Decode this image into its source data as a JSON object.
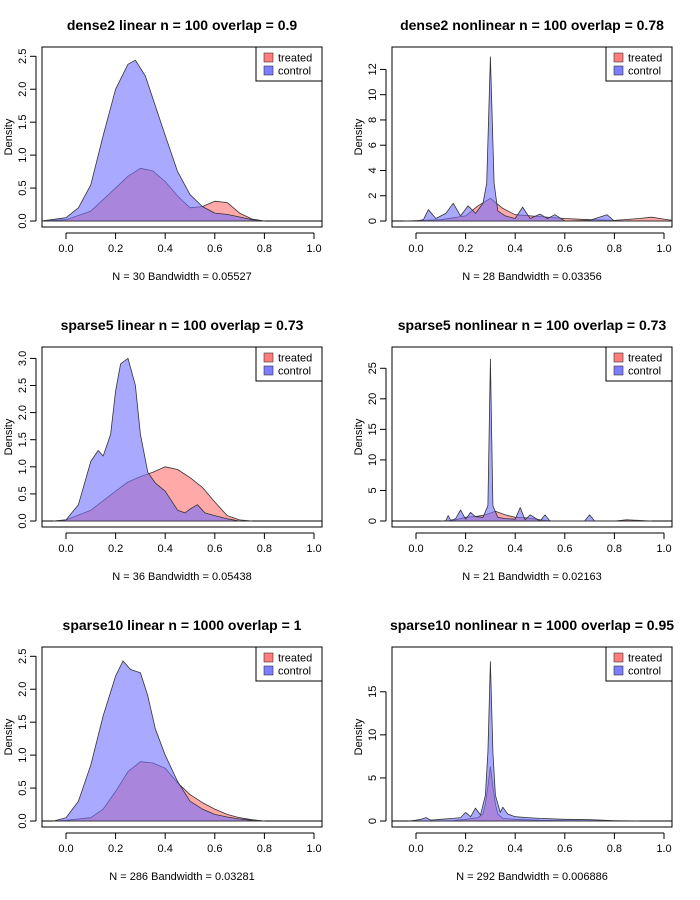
{
  "colors": {
    "treated": "#ff6f6f",
    "control": "#6f6fff",
    "overlap": "#7a2fc0",
    "axis": "#000000"
  },
  "legend": {
    "position": "top-right",
    "labels": [
      "treated",
      "control"
    ]
  },
  "chart_data": [
    {
      "type": "area",
      "title": "dense2 linear n = 100 overlap = 0.9",
      "xlabel": "N = 30   Bandwidth = 0.05527",
      "ylabel": "Density",
      "xlim": [
        0,
        1
      ],
      "ylim": [
        0,
        2.55
      ],
      "xticks": [
        "0.0",
        "0.2",
        "0.4",
        "0.6",
        "0.8",
        "1.0"
      ],
      "yticks": [
        "0.0",
        "0.5",
        "1.0",
        "1.5",
        "2.0",
        "2.5"
      ],
      "series": [
        {
          "name": "treated",
          "x": [
            -0.1,
            0.0,
            0.1,
            0.2,
            0.25,
            0.3,
            0.35,
            0.4,
            0.45,
            0.5,
            0.55,
            0.6,
            0.65,
            0.7,
            0.75,
            0.8
          ],
          "y": [
            0.0,
            0.02,
            0.15,
            0.5,
            0.68,
            0.8,
            0.76,
            0.6,
            0.38,
            0.2,
            0.22,
            0.3,
            0.28,
            0.12,
            0.03,
            0.0
          ]
        },
        {
          "name": "control",
          "x": [
            -0.1,
            0.0,
            0.05,
            0.1,
            0.15,
            0.2,
            0.25,
            0.28,
            0.32,
            0.36,
            0.4,
            0.45,
            0.5,
            0.55,
            0.6,
            0.65,
            0.7,
            0.75,
            0.8
          ],
          "y": [
            0.0,
            0.05,
            0.2,
            0.55,
            1.3,
            2.0,
            2.38,
            2.44,
            2.2,
            1.75,
            1.3,
            0.75,
            0.4,
            0.22,
            0.12,
            0.1,
            0.06,
            0.02,
            0.0
          ]
        }
      ]
    },
    {
      "type": "area",
      "title": "dense2 nonlinear n = 100 overlap = 0.78",
      "xlabel": "N = 28   Bandwidth = 0.03356",
      "ylabel": "Density",
      "xlim": [
        0,
        1
      ],
      "ylim": [
        0,
        13.3
      ],
      "xticks": [
        "0.0",
        "0.2",
        "0.4",
        "0.6",
        "0.8",
        "1.0"
      ],
      "yticks": [
        "0",
        "2",
        "4",
        "6",
        "8",
        "10",
        "12"
      ],
      "series": [
        {
          "name": "treated",
          "x": [
            -0.05,
            0.0,
            0.1,
            0.2,
            0.25,
            0.3,
            0.35,
            0.4,
            0.5,
            0.6,
            0.7,
            0.8,
            0.9,
            0.95,
            1.0,
            1.05
          ],
          "y": [
            0.0,
            0.02,
            0.1,
            0.4,
            1.2,
            1.8,
            1.0,
            0.5,
            0.35,
            0.2,
            0.1,
            0.05,
            0.2,
            0.3,
            0.15,
            0.0
          ]
        },
        {
          "name": "control",
          "x": [
            0.0,
            0.03,
            0.05,
            0.08,
            0.12,
            0.15,
            0.18,
            0.21,
            0.24,
            0.27,
            0.285,
            0.3,
            0.315,
            0.33,
            0.36,
            0.4,
            0.43,
            0.46,
            0.5,
            0.53,
            0.56,
            0.6,
            0.7,
            0.77,
            0.8,
            0.9,
            1.0
          ],
          "y": [
            0.0,
            0.1,
            0.9,
            0.2,
            0.6,
            1.4,
            0.4,
            1.2,
            0.6,
            1.4,
            3.0,
            13.0,
            3.0,
            0.8,
            0.4,
            0.2,
            1.1,
            0.2,
            0.55,
            0.2,
            0.5,
            0.0,
            0.05,
            0.5,
            0.0,
            0.0,
            0.0
          ]
        }
      ]
    },
    {
      "type": "area",
      "title": "sparse5 linear n = 100 overlap = 0.73",
      "xlabel": "N = 36   Bandwidth = 0.05438",
      "ylabel": "Density",
      "xlim": [
        0,
        1
      ],
      "ylim": [
        0,
        3.1
      ],
      "xticks": [
        "0.0",
        "0.2",
        "0.4",
        "0.6",
        "0.8",
        "1.0"
      ],
      "yticks": [
        "0.0",
        "0.5",
        "1.0",
        "1.5",
        "2.0",
        "2.5",
        "3.0"
      ],
      "series": [
        {
          "name": "treated",
          "x": [
            -0.05,
            0.0,
            0.1,
            0.2,
            0.25,
            0.3,
            0.35,
            0.4,
            0.45,
            0.5,
            0.55,
            0.6,
            0.65,
            0.7,
            0.75
          ],
          "y": [
            0.0,
            0.02,
            0.2,
            0.55,
            0.72,
            0.82,
            0.9,
            1.0,
            0.95,
            0.8,
            0.62,
            0.35,
            0.1,
            0.02,
            0.0
          ]
        },
        {
          "name": "control",
          "x": [
            -0.05,
            0.0,
            0.05,
            0.1,
            0.13,
            0.15,
            0.18,
            0.2,
            0.22,
            0.25,
            0.28,
            0.3,
            0.33,
            0.36,
            0.4,
            0.45,
            0.48,
            0.5,
            0.53,
            0.56,
            0.6,
            0.65,
            0.7
          ],
          "y": [
            0.0,
            0.02,
            0.3,
            1.1,
            1.3,
            1.2,
            1.6,
            2.4,
            2.9,
            3.0,
            2.5,
            1.6,
            0.9,
            0.7,
            0.55,
            0.2,
            0.15,
            0.22,
            0.3,
            0.15,
            0.1,
            0.04,
            0.0
          ]
        }
      ]
    },
    {
      "type": "area",
      "title": "sparse5 nonlinear n = 100 overlap = 0.73",
      "xlabel": "N = 21   Bandwidth = 0.02163",
      "ylabel": "Density",
      "xlim": [
        0,
        1
      ],
      "ylim": [
        0,
        27.5
      ],
      "xticks": [
        "0.0",
        "0.2",
        "0.4",
        "0.6",
        "0.8",
        "1.0"
      ],
      "yticks": [
        "0",
        "5",
        "10",
        "15",
        "20",
        "25"
      ],
      "series": [
        {
          "name": "treated",
          "x": [
            0.1,
            0.15,
            0.2,
            0.25,
            0.28,
            0.32,
            0.36,
            0.4,
            0.45,
            0.5,
            0.55,
            0.8,
            0.85,
            0.9,
            0.95
          ],
          "y": [
            0.0,
            0.1,
            0.6,
            0.8,
            1.0,
            1.6,
            1.0,
            0.6,
            0.5,
            0.2,
            0.0,
            0.0,
            0.2,
            0.1,
            0.0
          ]
        },
        {
          "name": "control",
          "x": [
            0.1,
            0.12,
            0.13,
            0.14,
            0.16,
            0.18,
            0.2,
            0.22,
            0.24,
            0.27,
            0.29,
            0.3,
            0.31,
            0.33,
            0.36,
            0.4,
            0.42,
            0.44,
            0.46,
            0.5,
            0.52,
            0.54,
            0.68,
            0.7,
            0.72
          ],
          "y": [
            0.0,
            0.05,
            0.9,
            0.1,
            0.4,
            1.8,
            0.3,
            1.4,
            0.7,
            0.6,
            2.5,
            26.5,
            2.5,
            0.6,
            0.4,
            0.3,
            2.2,
            0.2,
            1.0,
            0.0,
            1.0,
            0.0,
            0.0,
            1.0,
            0.0
          ]
        }
      ]
    },
    {
      "type": "area",
      "title": "sparse10 linear n = 1000 overlap = 1",
      "xlabel": "N = 286   Bandwidth = 0.03281",
      "ylabel": "Density",
      "xlim": [
        0,
        1
      ],
      "ylim": [
        0,
        2.55
      ],
      "xticks": [
        "0.0",
        "0.2",
        "0.4",
        "0.6",
        "0.8",
        "1.0"
      ],
      "yticks": [
        "0.0",
        "0.5",
        "1.0",
        "1.5",
        "2.0",
        "2.5"
      ],
      "series": [
        {
          "name": "treated",
          "x": [
            -0.05,
            0.0,
            0.1,
            0.15,
            0.2,
            0.25,
            0.3,
            0.35,
            0.4,
            0.45,
            0.5,
            0.55,
            0.6,
            0.65,
            0.7,
            0.75,
            0.8
          ],
          "y": [
            0.0,
            0.01,
            0.05,
            0.18,
            0.45,
            0.75,
            0.9,
            0.88,
            0.8,
            0.58,
            0.4,
            0.28,
            0.18,
            0.1,
            0.05,
            0.02,
            0.0
          ]
        },
        {
          "name": "control",
          "x": [
            -0.05,
            0.0,
            0.05,
            0.1,
            0.15,
            0.2,
            0.23,
            0.26,
            0.3,
            0.33,
            0.36,
            0.4,
            0.45,
            0.5,
            0.55,
            0.6,
            0.65,
            0.7,
            0.75,
            0.8
          ],
          "y": [
            0.0,
            0.05,
            0.3,
            0.85,
            1.6,
            2.2,
            2.43,
            2.3,
            2.25,
            1.9,
            1.4,
            1.0,
            0.6,
            0.3,
            0.18,
            0.1,
            0.06,
            0.03,
            0.01,
            0.0
          ]
        }
      ]
    },
    {
      "type": "area",
      "title": "sparse10 nonlinear n = 1000 overlap = 0.95",
      "xlabel": "N = 292   Bandwidth = 0.006886",
      "ylabel": "Density",
      "xlim": [
        0,
        1
      ],
      "ylim": [
        0,
        19.5
      ],
      "xticks": [
        "0.0",
        "0.2",
        "0.4",
        "0.6",
        "0.8",
        "1.0"
      ],
      "yticks": [
        "0",
        "5",
        "10",
        "15"
      ],
      "series": [
        {
          "name": "treated",
          "x": [
            0.1,
            0.15,
            0.2,
            0.25,
            0.27,
            0.28,
            0.29,
            0.3,
            0.31,
            0.32,
            0.33,
            0.35,
            0.4,
            0.5,
            0.6,
            0.8
          ],
          "y": [
            0.0,
            0.05,
            0.2,
            0.4,
            0.8,
            2.0,
            4.0,
            6.3,
            4.0,
            2.0,
            0.8,
            0.3,
            0.2,
            0.08,
            0.03,
            0.0
          ]
        },
        {
          "name": "control",
          "x": [
            -0.03,
            0.0,
            0.02,
            0.04,
            0.06,
            0.1,
            0.15,
            0.18,
            0.2,
            0.22,
            0.24,
            0.26,
            0.28,
            0.29,
            0.3,
            0.31,
            0.32,
            0.34,
            0.35,
            0.37,
            0.4,
            0.45,
            0.5,
            0.6,
            0.7,
            0.8,
            0.9
          ],
          "y": [
            0.0,
            0.1,
            0.2,
            0.4,
            0.1,
            0.2,
            0.3,
            0.4,
            1.0,
            0.5,
            1.5,
            0.7,
            3.0,
            8.0,
            18.5,
            8.0,
            3.0,
            1.0,
            1.6,
            0.8,
            0.5,
            0.4,
            0.3,
            0.2,
            0.15,
            0.05,
            0.0
          ]
        }
      ]
    }
  ]
}
